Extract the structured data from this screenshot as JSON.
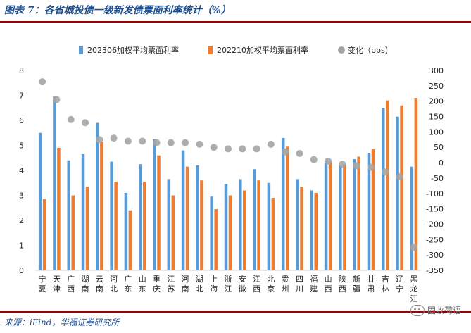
{
  "header": {
    "title": "图表 7：各省城投债一级新发债票面利率统计（%）"
  },
  "footer": {
    "source": "来源：iFind，华福证券研究所",
    "watermark": "固收荷语"
  },
  "colors": {
    "series_202306": "#5b9bd5",
    "series_202210": "#ed7d31",
    "change": "#a5a5a5",
    "frame_rule": "#9e0000",
    "title_text": "#1f4e8c"
  },
  "chart_data": {
    "type": "bar",
    "categories": [
      "宁夏",
      "天津",
      "广西",
      "湖南",
      "云南",
      "河北",
      "广东",
      "山东",
      "重庆",
      "江苏",
      "河南",
      "湖北",
      "上海",
      "浙江",
      "安徽",
      "江西",
      "北京",
      "贵州",
      "四川",
      "福建",
      "山西",
      "陕西",
      "新疆",
      "甘肃",
      "吉林",
      "辽宁",
      "黑龙江"
    ],
    "series": [
      {
        "name": "202306加权平均票面利率",
        "axis": "left",
        "type": "bar",
        "values": [
          5.5,
          6.95,
          4.4,
          4.65,
          5.9,
          4.35,
          3.1,
          4.25,
          5.25,
          3.65,
          4.8,
          4.2,
          2.95,
          3.45,
          3.65,
          4.05,
          3.5,
          5.3,
          3.65,
          3.2,
          4.4,
          4.2,
          4.45,
          4.7,
          6.5,
          6.15,
          4.15
        ]
      },
      {
        "name": "202210加权平均票面利率",
        "axis": "left",
        "type": "bar",
        "values": [
          2.85,
          4.9,
          3.0,
          3.35,
          5.15,
          3.55,
          2.4,
          3.55,
          4.6,
          3.0,
          4.15,
          3.6,
          2.45,
          3.0,
          3.2,
          3.6,
          2.9,
          4.95,
          3.35,
          3.1,
          4.35,
          4.25,
          4.55,
          4.85,
          6.8,
          6.6,
          6.9
        ]
      },
      {
        "name": "变化（bps）",
        "axis": "right",
        "type": "scatter",
        "values": [
          263,
          205,
          140,
          130,
          75,
          80,
          70,
          70,
          65,
          65,
          65,
          60,
          50,
          45,
          45,
          45,
          60,
          35,
          30,
          10,
          5,
          -5,
          -10,
          -15,
          -30,
          -45,
          -275
        ]
      }
    ],
    "y_left": {
      "min": 0,
      "max": 8,
      "ticks": [
        0,
        1,
        2,
        3,
        4,
        5,
        6,
        7,
        8
      ]
    },
    "y_right": {
      "min": -350,
      "max": 300,
      "ticks": [
        300,
        250,
        200,
        150,
        100,
        50,
        0,
        -50,
        -100,
        -150,
        -200,
        -250,
        -300,
        -350
      ]
    },
    "grid": false,
    "legend_position": "top"
  }
}
